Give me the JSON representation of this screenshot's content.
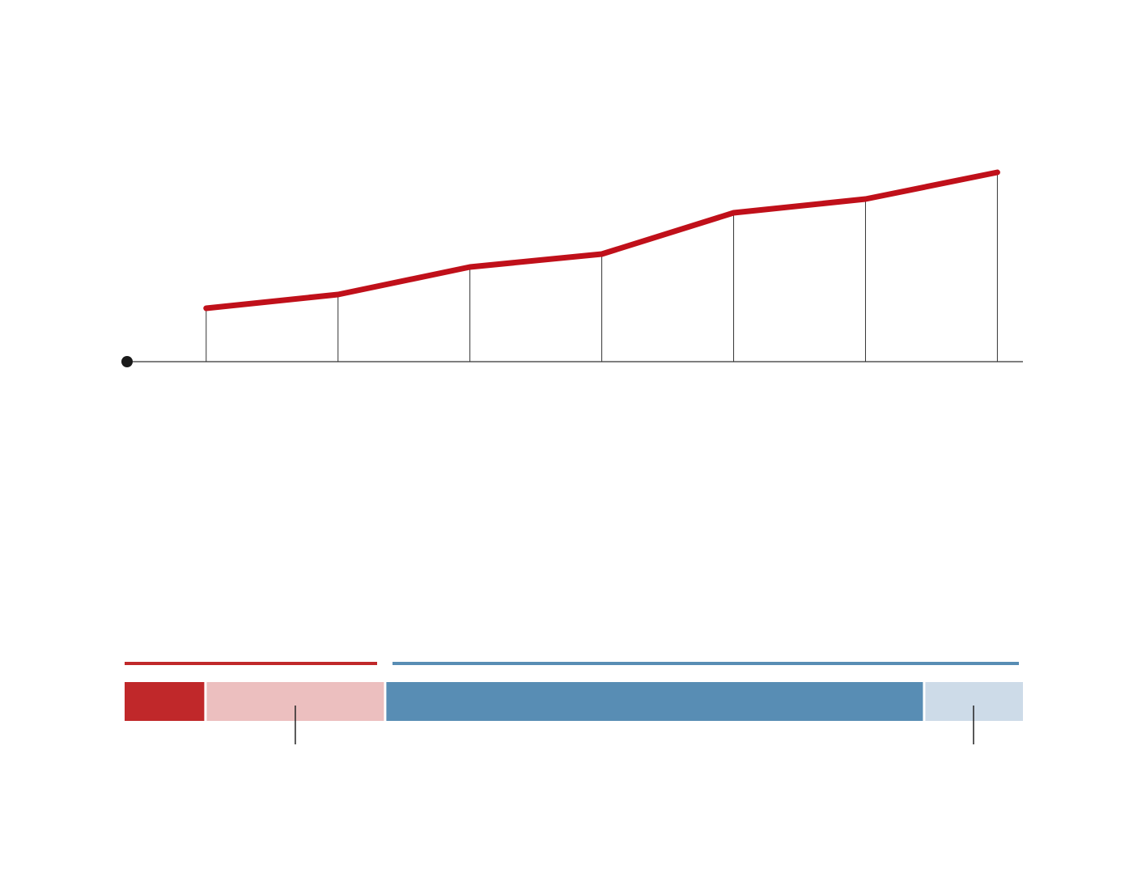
{
  "chart_data": [
    {
      "type": "line",
      "x": [
        0.6,
        1.6,
        2.6,
        3.6,
        4.6,
        5.6,
        6.6
      ],
      "values": [
        66,
        83,
        117,
        133,
        184,
        201,
        234
      ],
      "xlim": [
        0,
        6.8
      ],
      "ylim": [
        0,
        350
      ],
      "color": "#c0101a"
    },
    {
      "type": "stacked-bar",
      "values": [
        9,
        20,
        60,
        11
      ],
      "colors": [
        "#c0282a",
        "#ecbfbf",
        "#588db4",
        "#cddbe8"
      ],
      "xlim": [
        0,
        100
      ]
    }
  ]
}
